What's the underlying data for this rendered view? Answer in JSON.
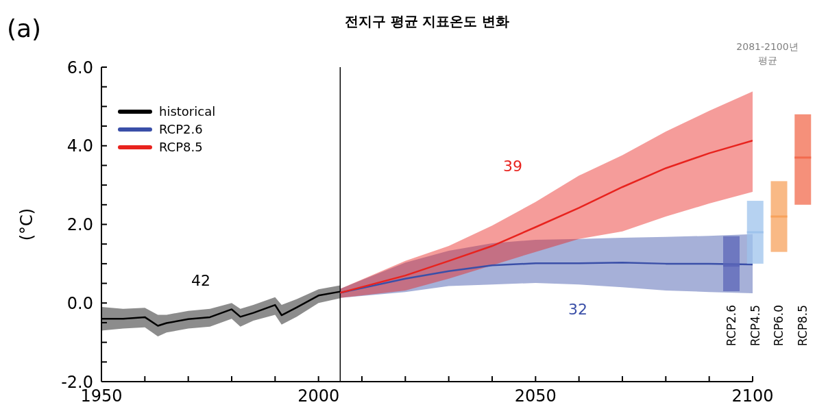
{
  "chart_data": [
    {
      "type": "line",
      "title": "전지구 평균 지표온도 변화",
      "ylabel": "(°C)",
      "legend": "top left",
      "xlim": [
        1950,
        2100
      ],
      "xticks": [
        1950,
        {
          "value": 1960,
          "label": null
        },
        {
          "value": 1970,
          "label": null
        },
        {
          "value": 1980,
          "label": null
        },
        {
          "value": 1990,
          "label": null
        },
        2000,
        {
          "value": 2010,
          "label": null
        },
        {
          "value": 2020,
          "label": null
        },
        {
          "value": 2030,
          "label": null
        },
        {
          "value": 2040,
          "label": null
        },
        2050,
        {
          "value": 2060,
          "label": null
        },
        {
          "value": 2070,
          "label": null
        },
        {
          "value": 2080,
          "label": null
        },
        {
          "value": 2090,
          "label": null
        },
        2100
      ],
      "ylim": [
        -2,
        6
      ],
      "yticks": [
        {
          "value": -2,
          "label": "-2.0"
        },
        {
          "value": -1.5,
          "label": null
        },
        {
          "value": -1,
          "label": null
        },
        {
          "value": -0.5,
          "label": null
        },
        {
          "value": 0,
          "label": "0.0"
        },
        {
          "value": 0.5,
          "label": null
        },
        {
          "value": 1,
          "label": null
        },
        {
          "value": 1.5,
          "label": null
        },
        {
          "value": 2,
          "label": "2.0"
        },
        {
          "value": 2.5,
          "label": null
        },
        {
          "value": 3,
          "label": null
        },
        {
          "value": 3.5,
          "label": null
        },
        {
          "value": 4,
          "label": "4.0"
        },
        {
          "value": 4.5,
          "label": null
        },
        {
          "value": 5,
          "label": null
        },
        {
          "value": 5.5,
          "label": null
        },
        {
          "value": 6,
          "label": "6.0"
        }
      ],
      "ref_lines": [
        {
          "axis": "x",
          "value": 2005,
          "color": "#000000"
        }
      ],
      "annotations": [
        "(a)",
        "42",
        "32",
        "39"
      ],
      "series": [
        {
          "name": "historical",
          "type": "line",
          "color": "#000000",
          "x": [
            1950,
            1955,
            1960,
            1963,
            1965,
            1970,
            1975,
            1980,
            1982,
            1985,
            1990,
            1991.5,
            1995,
            2000,
            2005
          ],
          "values": [
            -0.4,
            -0.4,
            -0.36,
            -0.58,
            -0.51,
            -0.41,
            -0.36,
            -0.16,
            -0.35,
            -0.25,
            -0.05,
            -0.31,
            -0.11,
            0.19,
            0.29
          ],
          "upper": [
            -0.1,
            -0.15,
            -0.12,
            -0.3,
            -0.3,
            -0.2,
            -0.15,
            0.0,
            -0.15,
            -0.05,
            0.15,
            -0.05,
            0.1,
            0.35,
            0.45
          ],
          "lower": [
            -0.7,
            -0.65,
            -0.62,
            -0.85,
            -0.75,
            -0.65,
            -0.6,
            -0.4,
            -0.6,
            -0.45,
            -0.3,
            -0.55,
            -0.35,
            0.0,
            0.12
          ]
        },
        {
          "name": "RCP2.6",
          "type": "line",
          "color": "#3a4fa8",
          "x": [
            2005,
            2020,
            2030,
            2040,
            2050,
            2060,
            2070,
            2080,
            2090,
            2100
          ],
          "values": [
            0.26,
            0.62,
            0.81,
            0.96,
            1.01,
            1.01,
            1.03,
            1.0,
            1.0,
            0.98
          ],
          "upper": [
            0.36,
            1.03,
            1.33,
            1.52,
            1.61,
            1.63,
            1.66,
            1.68,
            1.71,
            1.75
          ],
          "lower": [
            0.13,
            0.28,
            0.43,
            0.47,
            0.51,
            0.47,
            0.4,
            0.32,
            0.28,
            0.25
          ]
        },
        {
          "name": "RCP8.5",
          "type": "line",
          "color": "#e8231e",
          "x": [
            2005,
            2020,
            2030,
            2040,
            2050,
            2060,
            2070,
            2080,
            2090,
            2100
          ],
          "values": [
            0.26,
            0.7,
            1.07,
            1.45,
            1.93,
            2.42,
            2.95,
            3.43,
            3.81,
            4.13
          ],
          "upper": [
            0.36,
            1.07,
            1.45,
            1.97,
            2.57,
            3.24,
            3.76,
            4.36,
            4.89,
            5.38
          ],
          "lower": [
            0.13,
            0.32,
            0.62,
            0.96,
            1.3,
            1.63,
            1.82,
            2.2,
            2.53,
            2.83
          ]
        }
      ]
    },
    {
      "type": "box",
      "title": "2081-2100년 평균",
      "tick_labels": "x",
      "ylim": [
        -2,
        6
      ],
      "categories": [
        "RCP2.6",
        "RCP4.5",
        "RCP6.0",
        "RCP8.5"
      ],
      "colors": [
        "#5b66b8",
        "#9ec3ec",
        "#f7a25c",
        "#f26b4e"
      ],
      "boxes": [
        {
          "low": 0.3,
          "q1": 0.3,
          "median": 0.95,
          "q3": 1.7,
          "high": 1.7
        },
        {
          "low": 1.0,
          "q1": 1.0,
          "median": 1.8,
          "q3": 2.6,
          "high": 2.6
        },
        {
          "low": 1.3,
          "q1": 1.3,
          "median": 2.2,
          "q3": 3.1,
          "high": 3.1
        },
        {
          "low": 2.5,
          "q1": 2.5,
          "median": 3.7,
          "q3": 4.8,
          "high": 4.8
        }
      ]
    }
  ]
}
